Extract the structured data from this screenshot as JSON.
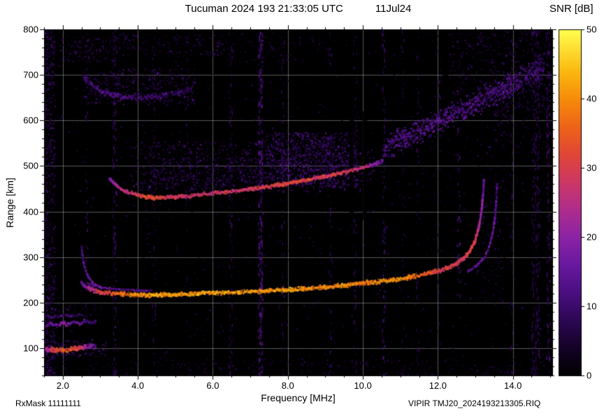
{
  "header": {
    "title": "Tucuman 2024 193 21:33:05 UTC",
    "date": "11Jul24",
    "colorbar_label": "SNR [dB]"
  },
  "footer": {
    "left": "RxMask 11111111",
    "right": "VIPIR  TMJ20_2024193213305.RIQ"
  },
  "chart_data": {
    "type": "heatmap",
    "subtype": "ionogram",
    "title": "Tucuman 2024 193 21:33:05 UTC",
    "date_label": "11Jul24",
    "xlabel": "Frequency [MHz]",
    "ylabel": "Range [km]",
    "zlabel": "SNR [dB]",
    "xlim": [
      1.5,
      15.05
    ],
    "ylim": [
      40,
      800
    ],
    "zlim": [
      0,
      50
    ],
    "grid": true,
    "background": "#000000",
    "x_ticks": [
      2,
      4,
      6,
      8,
      10,
      12,
      14
    ],
    "x_tick_labels": [
      "2.0",
      "4.0",
      "6.0",
      "8.0",
      "10.0",
      "12.0",
      "14.0"
    ],
    "x_minor_step": 0.5,
    "y_ticks": [
      100,
      200,
      300,
      400,
      500,
      600,
      700,
      800
    ],
    "y_tick_labels": [
      "100",
      "200",
      "300",
      "400",
      "500",
      "600",
      "700",
      "800"
    ],
    "y_minor_step": 20,
    "z_ticks": [
      0,
      10,
      20,
      30,
      40,
      50
    ],
    "z_tick_labels": [
      "0",
      "10",
      "20",
      "30",
      "40",
      "50"
    ],
    "colormap_stops": [
      [
        0.0,
        0,
        0,
        0
      ],
      [
        0.08,
        20,
        2,
        40
      ],
      [
        0.16,
        45,
        8,
        85
      ],
      [
        0.24,
        75,
        15,
        130
      ],
      [
        0.32,
        105,
        25,
        160
      ],
      [
        0.4,
        140,
        35,
        165
      ],
      [
        0.48,
        175,
        45,
        140
      ],
      [
        0.56,
        205,
        55,
        100
      ],
      [
        0.64,
        225,
        70,
        55
      ],
      [
        0.72,
        238,
        100,
        25
      ],
      [
        0.8,
        246,
        140,
        10
      ],
      [
        0.88,
        250,
        185,
        15
      ],
      [
        1.0,
        255,
        255,
        80
      ]
    ],
    "traces": [
      {
        "name": "f-trace-1hop",
        "thickness": 6,
        "density": 3.2,
        "points": [
          [
            2.5,
            242,
            16
          ],
          [
            2.7,
            230,
            22
          ],
          [
            3.0,
            223,
            30
          ],
          [
            3.5,
            219,
            36
          ],
          [
            4.0,
            217,
            41
          ],
          [
            4.5,
            217,
            42
          ],
          [
            5.0,
            218,
            42
          ],
          [
            5.5,
            219,
            41
          ],
          [
            6.0,
            221,
            42
          ],
          [
            6.5,
            222,
            40
          ],
          [
            7.0,
            224,
            42
          ],
          [
            7.5,
            226,
            41
          ],
          [
            8.0,
            228,
            42
          ],
          [
            8.5,
            231,
            40
          ],
          [
            9.0,
            234,
            39
          ],
          [
            9.5,
            238,
            40
          ],
          [
            10.0,
            242,
            38
          ],
          [
            10.5,
            247,
            39
          ],
          [
            11.0,
            252,
            40
          ],
          [
            11.4,
            258,
            37
          ],
          [
            11.8,
            265,
            33
          ],
          [
            12.1,
            272,
            30
          ],
          [
            12.4,
            281,
            29
          ],
          [
            12.65,
            294,
            30
          ],
          [
            12.85,
            312,
            31
          ],
          [
            13.0,
            338,
            28
          ],
          [
            13.1,
            368,
            24
          ],
          [
            13.17,
            405,
            20
          ],
          [
            13.21,
            442,
            17
          ],
          [
            13.23,
            468,
            13
          ]
        ]
      },
      {
        "name": "x-mode-cusp",
        "thickness": 3,
        "density": 1.5,
        "points": [
          [
            12.8,
            268,
            13
          ],
          [
            13.05,
            282,
            15
          ],
          [
            13.25,
            300,
            16
          ],
          [
            13.38,
            325,
            16
          ],
          [
            13.47,
            356,
            15
          ],
          [
            13.53,
            392,
            14
          ],
          [
            13.56,
            428,
            13
          ],
          [
            13.58,
            462,
            11
          ]
        ]
      },
      {
        "name": "low-freq-cusp",
        "thickness": 3.5,
        "density": 1.6,
        "points": [
          [
            2.5,
            325,
            9
          ],
          [
            2.53,
            300,
            11
          ],
          [
            2.58,
            278,
            13
          ],
          [
            2.68,
            257,
            15
          ],
          [
            2.82,
            242,
            17
          ],
          [
            3.05,
            231,
            18
          ]
        ]
      },
      {
        "name": "companion-above-1hop",
        "thickness": 3,
        "density": 1.4,
        "points": [
          [
            2.65,
            242,
            12
          ],
          [
            3.0,
            234,
            15
          ],
          [
            3.4,
            229,
            15
          ],
          [
            3.9,
            227,
            13
          ],
          [
            4.4,
            226,
            11
          ]
        ]
      },
      {
        "name": "f-trace-2hop",
        "thickness": 5.5,
        "density": 3,
        "points": [
          [
            3.25,
            472,
            17
          ],
          [
            3.45,
            455,
            22
          ],
          [
            3.7,
            443,
            27
          ],
          [
            4.0,
            436,
            30
          ],
          [
            4.3,
            431,
            32
          ],
          [
            4.6,
            430,
            31
          ],
          [
            5.0,
            432,
            28
          ],
          [
            5.4,
            435,
            27
          ],
          [
            5.8,
            438,
            28
          ],
          [
            6.2,
            441,
            27
          ],
          [
            6.6,
            445,
            28
          ],
          [
            7.0,
            449,
            29
          ],
          [
            7.4,
            454,
            30
          ],
          [
            7.8,
            459,
            31
          ],
          [
            8.2,
            465,
            32
          ],
          [
            8.6,
            471,
            31
          ],
          [
            9.0,
            477,
            30
          ],
          [
            9.4,
            484,
            29
          ],
          [
            9.8,
            492,
            27
          ],
          [
            10.1,
            499,
            24
          ],
          [
            10.35,
            505,
            19
          ],
          [
            10.55,
            511,
            14
          ]
        ]
      },
      {
        "name": "rising-spread-band-2hop",
        "thickness": 34,
        "density": 5,
        "points": [
          [
            10.55,
            540,
            11
          ],
          [
            11.0,
            558,
            12
          ],
          [
            11.5,
            577,
            12
          ],
          [
            12.0,
            597,
            13
          ],
          [
            12.5,
            617,
            12
          ],
          [
            13.0,
            637,
            13
          ],
          [
            13.5,
            658,
            12
          ],
          [
            14.0,
            680,
            12
          ],
          [
            14.45,
            702,
            11
          ],
          [
            14.85,
            722,
            10
          ]
        ]
      },
      {
        "name": "third-hop-arc",
        "thickness": 9,
        "density": 2,
        "points": [
          [
            2.55,
            695,
            9
          ],
          [
            2.8,
            675,
            11
          ],
          [
            3.1,
            662,
            12
          ],
          [
            3.5,
            653,
            13
          ],
          [
            3.9,
            650,
            12
          ],
          [
            4.3,
            651,
            11
          ],
          [
            4.7,
            655,
            10
          ],
          [
            5.1,
            661,
            9
          ],
          [
            5.45,
            668,
            8
          ]
        ]
      },
      {
        "name": "echo-100km",
        "thickness": 7,
        "density": 3.5,
        "points": [
          [
            1.55,
            98,
            20
          ],
          [
            1.7,
            96,
            28
          ],
          [
            1.9,
            95,
            33
          ],
          [
            2.1,
            96,
            34
          ],
          [
            2.3,
            98,
            32
          ],
          [
            2.5,
            100,
            28
          ],
          [
            2.7,
            102,
            20
          ],
          [
            2.9,
            104,
            12
          ]
        ]
      },
      {
        "name": "echo-150km",
        "thickness": 5,
        "density": 2.2,
        "points": [
          [
            1.55,
            148,
            14
          ],
          [
            1.7,
            154,
            17
          ],
          [
            1.85,
            149,
            15
          ],
          [
            2.0,
            156,
            19
          ],
          [
            2.15,
            151,
            17
          ],
          [
            2.3,
            158,
            15
          ],
          [
            2.45,
            153,
            17
          ],
          [
            2.6,
            160,
            13
          ],
          [
            2.75,
            156,
            11
          ],
          [
            2.9,
            158,
            9
          ]
        ]
      },
      {
        "name": "echo-165km",
        "thickness": 4,
        "density": 1.4,
        "points": [
          [
            1.55,
            170,
            10
          ],
          [
            1.8,
            168,
            12
          ],
          [
            2.05,
            172,
            11
          ],
          [
            2.3,
            170,
            9
          ],
          [
            2.55,
            174,
            8
          ]
        ]
      }
    ],
    "clouds": [
      [
        3.8,
        10.3,
        445,
        555,
        0.035,
        4,
        13
      ],
      [
        7.4,
        9.85,
        455,
        575,
        0.1,
        5,
        15
      ],
      [
        4.3,
        7.4,
        450,
        520,
        0.045,
        4,
        12
      ],
      [
        2.5,
        5.5,
        635,
        715,
        0.05,
        4,
        12
      ],
      [
        1.9,
        3.3,
        730,
        785,
        0.05,
        4,
        11
      ],
      [
        3.3,
        6.3,
        742,
        790,
        0.04,
        4,
        10
      ],
      [
        6.3,
        9.2,
        730,
        790,
        0.015,
        3,
        8
      ],
      [
        12.3,
        15.0,
        620,
        800,
        0.035,
        3,
        10
      ],
      [
        13.5,
        15.0,
        530,
        650,
        0.02,
        3,
        8
      ],
      [
        1.5,
        1.78,
        40,
        800,
        0.1,
        3,
        12
      ],
      [
        1.5,
        15.05,
        40,
        78,
        0.02,
        3,
        8
      ],
      [
        1.55,
        3.2,
        82,
        120,
        0.06,
        5,
        14
      ],
      [
        13.0,
        13.75,
        200,
        560,
        0.015,
        3,
        9
      ],
      [
        1.6,
        3.0,
        170,
        200,
        0.03,
        4,
        10
      ],
      [
        1.5,
        15.05,
        40,
        800,
        0.0045,
        2,
        8
      ]
    ],
    "rfi_stripes": [
      {
        "f": 2.62,
        "w": 0.06,
        "snr": 8,
        "density": 0.03
      },
      {
        "f": 3.37,
        "w": 0.1,
        "snr": 9,
        "density": 0.05
      },
      {
        "f": 4.42,
        "w": 0.08,
        "snr": 7,
        "density": 0.03
      },
      {
        "f": 5.3,
        "w": 0.06,
        "snr": 6,
        "density": 0.02
      },
      {
        "f": 6.47,
        "w": 0.1,
        "snr": 8,
        "density": 0.04
      },
      {
        "f": 7.26,
        "w": 0.12,
        "snr": 12,
        "density": 0.09
      },
      {
        "f": 7.85,
        "w": 0.08,
        "snr": 8,
        "density": 0.03
      },
      {
        "f": 9.12,
        "w": 0.08,
        "snr": 7,
        "density": 0.025
      },
      {
        "f": 9.78,
        "w": 0.09,
        "snr": 8,
        "density": 0.03
      },
      {
        "f": 10.55,
        "w": 0.09,
        "snr": 9,
        "density": 0.04
      },
      {
        "f": 11.05,
        "w": 0.07,
        "snr": 7,
        "density": 0.025
      },
      {
        "f": 11.45,
        "w": 0.07,
        "snr": 7,
        "density": 0.025
      },
      {
        "f": 12.02,
        "w": 0.07,
        "snr": 7,
        "density": 0.02
      },
      {
        "f": 12.55,
        "w": 0.09,
        "snr": 11,
        "density": 0.06,
        "k0": 210,
        "k1": 585,
        "dashed": true
      },
      {
        "f": 13.95,
        "w": 0.08,
        "snr": 7,
        "density": 0.025
      },
      {
        "f": 14.6,
        "w": 0.22,
        "snr": 8,
        "density": 0.05
      },
      {
        "f": 14.93,
        "w": 0.1,
        "snr": 9,
        "density": 0.05
      }
    ],
    "dark_gaps": [
      {
        "f": 9.7,
        "w": 0.12,
        "k0": 380,
        "k1": 620
      },
      {
        "f": 10.05,
        "w": 0.12,
        "k0": 380,
        "k1": 620
      },
      {
        "f": 12.2,
        "w": 0.16,
        "k0": 540,
        "k1": 800
      }
    ]
  }
}
